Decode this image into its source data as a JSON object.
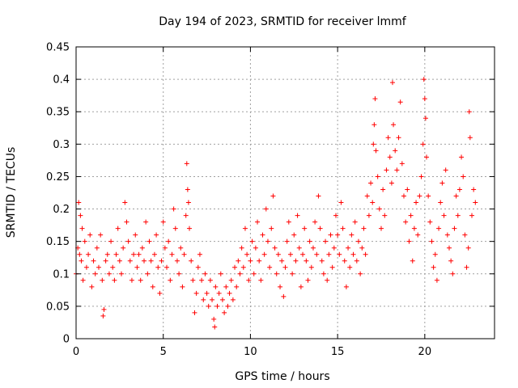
{
  "chart_data": {
    "type": "scatter",
    "title": "Day 194 of 2023, SRMTID for receiver lmmf",
    "xlabel": "GPS time / hours",
    "ylabel": "SRMTID / TECUs",
    "xlim": [
      0,
      24
    ],
    "ylim": [
      0,
      0.45
    ],
    "xticks": [
      0,
      5,
      10,
      15,
      20
    ],
    "yticks": [
      0,
      0.05,
      0.1,
      0.15,
      0.2,
      0.25,
      0.3,
      0.35,
      0.4,
      0.45
    ],
    "xtick_labels": [
      "0",
      "5",
      "10",
      "15",
      "20"
    ],
    "ytick_labels": [
      "0",
      "0.05",
      "0.1",
      "0.15",
      "0.2",
      "0.25",
      "0.3",
      "0.35",
      "0.4",
      "0.45"
    ],
    "grid": true,
    "marker": "+",
    "color": "#ff0000",
    "series": [
      {
        "name": "SRMTID",
        "points": [
          [
            0.0,
            0.1
          ],
          [
            0.1,
            0.14
          ],
          [
            0.15,
            0.21
          ],
          [
            0.2,
            0.13
          ],
          [
            0.25,
            0.19
          ],
          [
            0.3,
            0.12
          ],
          [
            0.35,
            0.17
          ],
          [
            0.4,
            0.09
          ],
          [
            0.5,
            0.15
          ],
          [
            0.6,
            0.11
          ],
          [
            0.7,
            0.13
          ],
          [
            0.8,
            0.16
          ],
          [
            0.9,
            0.08
          ],
          [
            1.0,
            0.12
          ],
          [
            1.1,
            0.1
          ],
          [
            1.2,
            0.14
          ],
          [
            1.3,
            0.11
          ],
          [
            1.4,
            0.16
          ],
          [
            1.5,
            0.09
          ],
          [
            1.55,
            0.035
          ],
          [
            1.6,
            0.045
          ],
          [
            1.7,
            0.12
          ],
          [
            1.8,
            0.13
          ],
          [
            1.9,
            0.1
          ],
          [
            2.0,
            0.15
          ],
          [
            2.1,
            0.11
          ],
          [
            2.2,
            0.09
          ],
          [
            2.3,
            0.13
          ],
          [
            2.4,
            0.17
          ],
          [
            2.5,
            0.12
          ],
          [
            2.6,
            0.1
          ],
          [
            2.7,
            0.14
          ],
          [
            2.8,
            0.21
          ],
          [
            2.9,
            0.18
          ],
          [
            3.0,
            0.15
          ],
          [
            3.1,
            0.12
          ],
          [
            3.2,
            0.09
          ],
          [
            3.3,
            0.13
          ],
          [
            3.4,
            0.16
          ],
          [
            3.5,
            0.11
          ],
          [
            3.6,
            0.13
          ],
          [
            3.7,
            0.09
          ],
          [
            3.8,
            0.14
          ],
          [
            3.9,
            0.12
          ],
          [
            4.0,
            0.18
          ],
          [
            4.1,
            0.1
          ],
          [
            4.2,
            0.15
          ],
          [
            4.3,
            0.12
          ],
          [
            4.4,
            0.08
          ],
          [
            4.5,
            0.13
          ],
          [
            4.6,
            0.16
          ],
          [
            4.7,
            0.11
          ],
          [
            4.8,
            0.07
          ],
          [
            4.9,
            0.12
          ],
          [
            5.0,
            0.18
          ],
          [
            5.1,
            0.14
          ],
          [
            5.2,
            0.11
          ],
          [
            5.3,
            0.15
          ],
          [
            5.4,
            0.09
          ],
          [
            5.5,
            0.13
          ],
          [
            5.6,
            0.2
          ],
          [
            5.7,
            0.17
          ],
          [
            5.8,
            0.12
          ],
          [
            5.9,
            0.1
          ],
          [
            6.0,
            0.14
          ],
          [
            6.1,
            0.08
          ],
          [
            6.2,
            0.13
          ],
          [
            6.3,
            0.19
          ],
          [
            6.35,
            0.27
          ],
          [
            6.4,
            0.23
          ],
          [
            6.45,
            0.21
          ],
          [
            6.5,
            0.17
          ],
          [
            6.6,
            0.12
          ],
          [
            6.7,
            0.09
          ],
          [
            6.8,
            0.04
          ],
          [
            6.9,
            0.07
          ],
          [
            7.0,
            0.11
          ],
          [
            7.1,
            0.13
          ],
          [
            7.2,
            0.09
          ],
          [
            7.3,
            0.06
          ],
          [
            7.4,
            0.1
          ],
          [
            7.5,
            0.07
          ],
          [
            7.6,
            0.05
          ],
          [
            7.7,
            0.09
          ],
          [
            7.8,
            0.06
          ],
          [
            7.9,
            0.03
          ],
          [
            7.95,
            0.018
          ],
          [
            8.0,
            0.08
          ],
          [
            8.1,
            0.05
          ],
          [
            8.2,
            0.07
          ],
          [
            8.3,
            0.1
          ],
          [
            8.4,
            0.06
          ],
          [
            8.5,
            0.04
          ],
          [
            8.6,
            0.08
          ],
          [
            8.7,
            0.05
          ],
          [
            8.8,
            0.07
          ],
          [
            8.9,
            0.09
          ],
          [
            9.0,
            0.06
          ],
          [
            9.1,
            0.11
          ],
          [
            9.2,
            0.08
          ],
          [
            9.3,
            0.12
          ],
          [
            9.4,
            0.1
          ],
          [
            9.5,
            0.14
          ],
          [
            9.6,
            0.11
          ],
          [
            9.7,
            0.17
          ],
          [
            9.8,
            0.13
          ],
          [
            9.9,
            0.09
          ],
          [
            10.0,
            0.12
          ],
          [
            10.1,
            0.15
          ],
          [
            10.2,
            0.1
          ],
          [
            10.3,
            0.14
          ],
          [
            10.4,
            0.18
          ],
          [
            10.5,
            0.12
          ],
          [
            10.6,
            0.09
          ],
          [
            10.7,
            0.16
          ],
          [
            10.8,
            0.13
          ],
          [
            10.9,
            0.2
          ],
          [
            11.0,
            0.15
          ],
          [
            11.1,
            0.11
          ],
          [
            11.2,
            0.17
          ],
          [
            11.3,
            0.22
          ],
          [
            11.4,
            0.14
          ],
          [
            11.5,
            0.1
          ],
          [
            11.6,
            0.13
          ],
          [
            11.7,
            0.08
          ],
          [
            11.8,
            0.12
          ],
          [
            11.9,
            0.065
          ],
          [
            12.0,
            0.11
          ],
          [
            12.1,
            0.15
          ],
          [
            12.2,
            0.18
          ],
          [
            12.3,
            0.13
          ],
          [
            12.4,
            0.1
          ],
          [
            12.5,
            0.16
          ],
          [
            12.6,
            0.12
          ],
          [
            12.7,
            0.19
          ],
          [
            12.8,
            0.14
          ],
          [
            12.9,
            0.08
          ],
          [
            13.0,
            0.13
          ],
          [
            13.1,
            0.17
          ],
          [
            13.2,
            0.12
          ],
          [
            13.3,
            0.09
          ],
          [
            13.4,
            0.15
          ],
          [
            13.5,
            0.11
          ],
          [
            13.6,
            0.14
          ],
          [
            13.7,
            0.18
          ],
          [
            13.8,
            0.13
          ],
          [
            13.9,
            0.22
          ],
          [
            14.0,
            0.17
          ],
          [
            14.1,
            0.12
          ],
          [
            14.2,
            0.1
          ],
          [
            14.3,
            0.15
          ],
          [
            14.4,
            0.09
          ],
          [
            14.5,
            0.13
          ],
          [
            14.6,
            0.16
          ],
          [
            14.7,
            0.11
          ],
          [
            14.8,
            0.14
          ],
          [
            14.9,
            0.19
          ],
          [
            15.0,
            0.16
          ],
          [
            15.1,
            0.13
          ],
          [
            15.2,
            0.21
          ],
          [
            15.3,
            0.17
          ],
          [
            15.4,
            0.12
          ],
          [
            15.5,
            0.08
          ],
          [
            15.6,
            0.14
          ],
          [
            15.7,
            0.11
          ],
          [
            15.8,
            0.16
          ],
          [
            15.9,
            0.13
          ],
          [
            16.0,
            0.18
          ],
          [
            16.1,
            0.12
          ],
          [
            16.2,
            0.15
          ],
          [
            16.3,
            0.1
          ],
          [
            16.4,
            0.14
          ],
          [
            16.5,
            0.17
          ],
          [
            16.6,
            0.13
          ],
          [
            16.7,
            0.22
          ],
          [
            16.8,
            0.19
          ],
          [
            16.9,
            0.24
          ],
          [
            17.0,
            0.21
          ],
          [
            17.05,
            0.3
          ],
          [
            17.1,
            0.33
          ],
          [
            17.15,
            0.37
          ],
          [
            17.2,
            0.29
          ],
          [
            17.3,
            0.25
          ],
          [
            17.4,
            0.2
          ],
          [
            17.5,
            0.17
          ],
          [
            17.6,
            0.23
          ],
          [
            17.7,
            0.19
          ],
          [
            17.8,
            0.26
          ],
          [
            17.9,
            0.31
          ],
          [
            18.0,
            0.28
          ],
          [
            18.1,
            0.24
          ],
          [
            18.15,
            0.395
          ],
          [
            18.2,
            0.33
          ],
          [
            18.3,
            0.29
          ],
          [
            18.4,
            0.26
          ],
          [
            18.5,
            0.31
          ],
          [
            18.6,
            0.365
          ],
          [
            18.7,
            0.27
          ],
          [
            18.8,
            0.22
          ],
          [
            18.9,
            0.18
          ],
          [
            19.0,
            0.23
          ],
          [
            19.1,
            0.15
          ],
          [
            19.2,
            0.19
          ],
          [
            19.3,
            0.12
          ],
          [
            19.4,
            0.17
          ],
          [
            19.5,
            0.21
          ],
          [
            19.6,
            0.16
          ],
          [
            19.7,
            0.22
          ],
          [
            19.8,
            0.25
          ],
          [
            19.9,
            0.3
          ],
          [
            19.95,
            0.4
          ],
          [
            20.0,
            0.37
          ],
          [
            20.05,
            0.34
          ],
          [
            20.1,
            0.28
          ],
          [
            20.2,
            0.22
          ],
          [
            20.3,
            0.18
          ],
          [
            20.4,
            0.15
          ],
          [
            20.5,
            0.11
          ],
          [
            20.6,
            0.13
          ],
          [
            20.7,
            0.09
          ],
          [
            20.8,
            0.17
          ],
          [
            20.9,
            0.21
          ],
          [
            21.0,
            0.24
          ],
          [
            21.1,
            0.19
          ],
          [
            21.2,
            0.26
          ],
          [
            21.3,
            0.16
          ],
          [
            21.4,
            0.14
          ],
          [
            21.5,
            0.12
          ],
          [
            21.6,
            0.1
          ],
          [
            21.7,
            0.17
          ],
          [
            21.8,
            0.22
          ],
          [
            21.9,
            0.19
          ],
          [
            22.0,
            0.23
          ],
          [
            22.1,
            0.28
          ],
          [
            22.2,
            0.25
          ],
          [
            22.3,
            0.16
          ],
          [
            22.4,
            0.11
          ],
          [
            22.5,
            0.14
          ],
          [
            22.55,
            0.35
          ],
          [
            22.6,
            0.31
          ],
          [
            22.7,
            0.19
          ],
          [
            22.8,
            0.23
          ],
          [
            22.9,
            0.21
          ]
        ]
      }
    ]
  }
}
